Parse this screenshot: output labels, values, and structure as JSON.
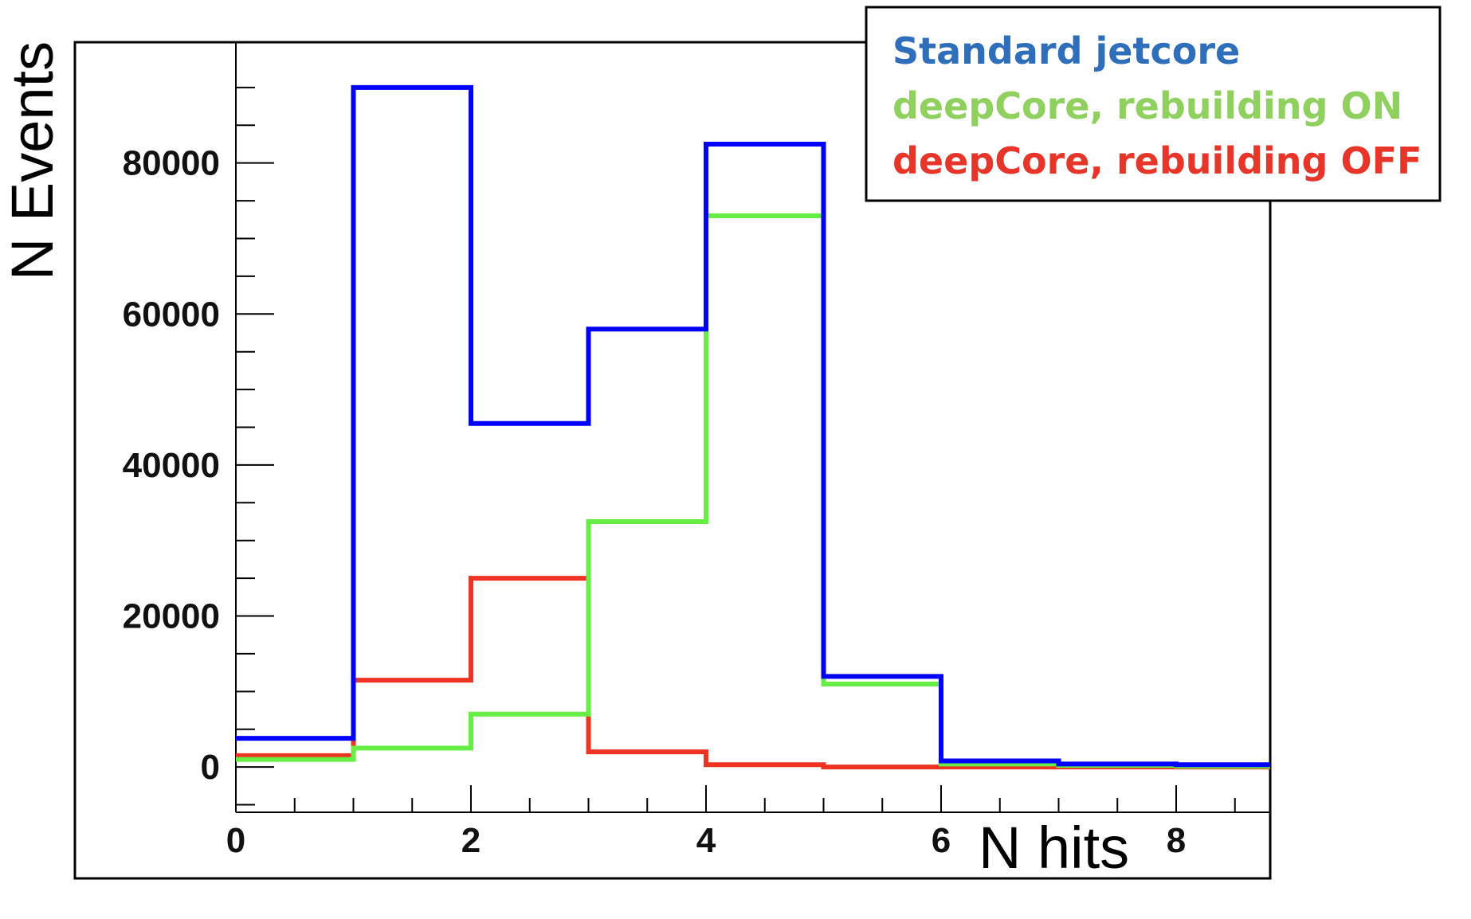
{
  "chart_data": {
    "type": "histogram-step",
    "xlabel": "N hits",
    "ylabel": "N Events",
    "bin_edges": [
      0,
      1,
      2,
      3,
      4,
      5,
      6,
      7,
      8,
      8.8
    ],
    "xlim": [
      0,
      8.8
    ],
    "ylim": [
      -6000,
      96000
    ],
    "x_ticks": [
      0,
      2,
      4,
      6,
      8
    ],
    "y_ticks": [
      0,
      20000,
      40000,
      60000,
      80000
    ],
    "series": [
      {
        "name": "Standard jetcore",
        "color": "#0000ff",
        "values": [
          3800,
          90000,
          45500,
          58000,
          82500,
          12000,
          800,
          400,
          300
        ]
      },
      {
        "name": "deepCore, rebuilding ON",
        "color": "#66ee44",
        "values": [
          1000,
          2500,
          7000,
          32500,
          73000,
          11000,
          400,
          200,
          100
        ]
      },
      {
        "name": "deepCore, rebuilding OFF",
        "color": "#ee3322",
        "values": [
          1500,
          11500,
          25000,
          2000,
          300,
          0,
          0,
          0,
          0
        ]
      }
    ],
    "legend": {
      "placement": "top-right",
      "entries": [
        {
          "label": "Standard jetcore",
          "color": "#2e6eba"
        },
        {
          "label": "deepCore, rebuilding ON",
          "color": "#8fd05e"
        },
        {
          "label": "deepCore, rebuilding OFF",
          "color": "#e8352a"
        }
      ]
    }
  }
}
